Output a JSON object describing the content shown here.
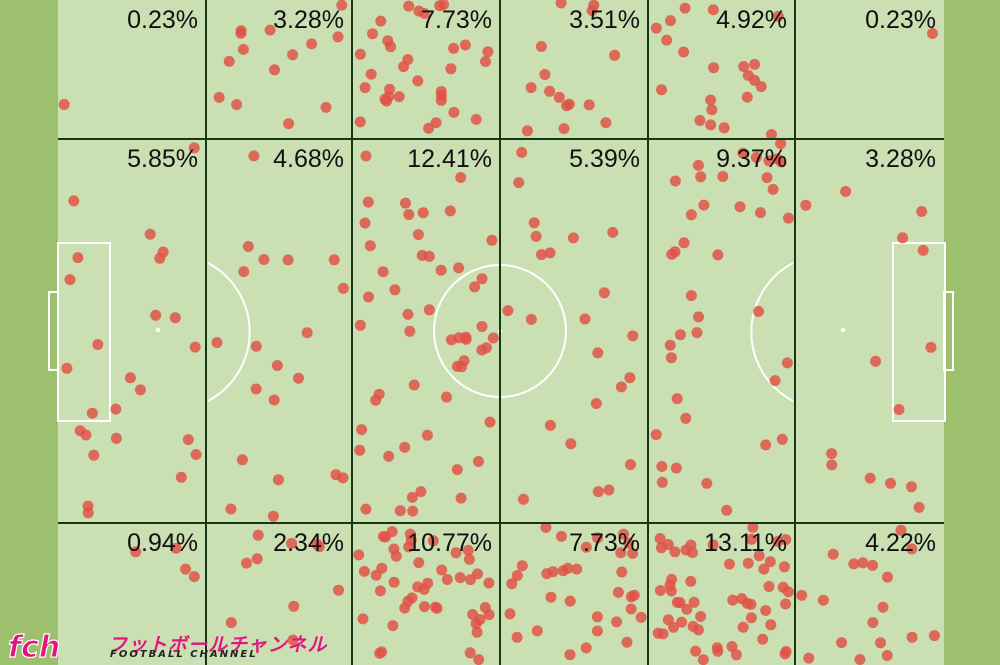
{
  "pitch": {
    "colors": {
      "outer": "#9cc06e",
      "inner": "#cadfb2",
      "gridline": "#163716",
      "markings": "#ffffff",
      "dot": "#e05045",
      "text": "#111111"
    },
    "zones": [
      {
        "row": 0,
        "col": 0,
        "label": "0.23%"
      },
      {
        "row": 0,
        "col": 1,
        "label": "3.28%"
      },
      {
        "row": 0,
        "col": 2,
        "label": "7.73%"
      },
      {
        "row": 0,
        "col": 3,
        "label": "3.51%"
      },
      {
        "row": 0,
        "col": 4,
        "label": "4.92%"
      },
      {
        "row": 0,
        "col": 5,
        "label": "0.23%"
      },
      {
        "row": 1,
        "col": 0,
        "label": "5.85%"
      },
      {
        "row": 1,
        "col": 1,
        "label": "4.68%"
      },
      {
        "row": 1,
        "col": 2,
        "label": "12.41%"
      },
      {
        "row": 1,
        "col": 3,
        "label": "5.39%"
      },
      {
        "row": 1,
        "col": 4,
        "label": "9.37%"
      },
      {
        "row": 1,
        "col": 5,
        "label": "3.28%"
      },
      {
        "row": 2,
        "col": 0,
        "label": "0.94%"
      },
      {
        "row": 2,
        "col": 1,
        "label": "2.34%"
      },
      {
        "row": 2,
        "col": 2,
        "label": "10.77%"
      },
      {
        "row": 2,
        "col": 3,
        "label": "7.73%"
      },
      {
        "row": 2,
        "col": 4,
        "label": "13.11%"
      },
      {
        "row": 2,
        "col": 5,
        "label": "4.22%"
      }
    ]
  },
  "watermark": {
    "logo_text": "fch",
    "japanese": "フットボールチャンネル",
    "english": "FOOTBALL CHANNEL",
    "accent": "#e3157d"
  }
}
